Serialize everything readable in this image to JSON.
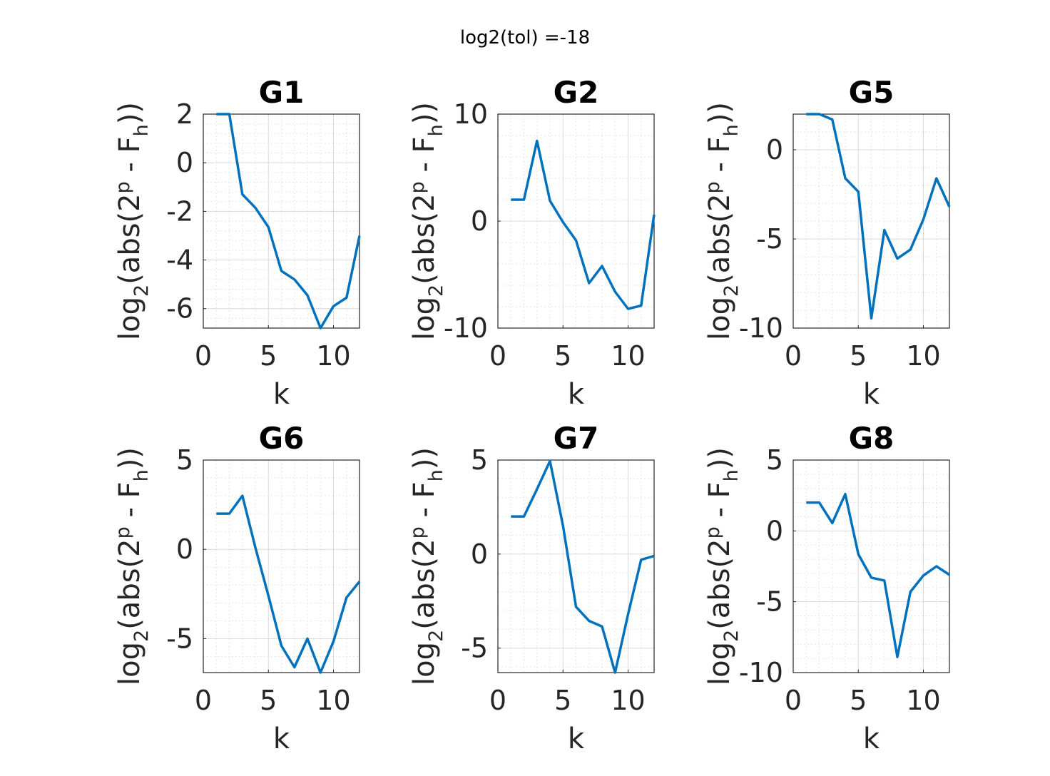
{
  "figure": {
    "suptitle": "log2(tol) =-18",
    "line_color": "#0072BD"
  },
  "chart_data": [
    {
      "type": "line",
      "title": "G1",
      "xlabel": "k",
      "ylabel": "log2(abs(2^p - F_h))",
      "xlim": [
        0,
        12
      ],
      "ylim": [
        -6.8,
        2
      ],
      "xticks": [
        0,
        5,
        10
      ],
      "yticks": [
        -6,
        -4,
        -2,
        0,
        2
      ],
      "grid": true,
      "x": [
        1,
        2,
        3,
        4,
        5,
        6,
        7,
        8,
        9,
        10,
        11,
        12
      ],
      "y": [
        2,
        2,
        -1.3,
        -1.85,
        -2.65,
        -4.45,
        -4.8,
        -5.45,
        -6.8,
        -5.9,
        -5.55,
        -3.0
      ]
    },
    {
      "type": "line",
      "title": "G2",
      "xlabel": "k",
      "ylabel": "log2(abs(2^p - F_h))",
      "xlim": [
        0,
        12
      ],
      "ylim": [
        -10,
        10
      ],
      "xticks": [
        0,
        5,
        10
      ],
      "yticks": [
        -10,
        0,
        10
      ],
      "grid": true,
      "x": [
        1,
        2,
        3,
        4,
        5,
        6,
        7,
        8,
        9,
        10,
        11,
        12
      ],
      "y": [
        2,
        2,
        7.5,
        1.9,
        -0.1,
        -1.8,
        -5.8,
        -4.2,
        -6.6,
        -8.2,
        -7.9,
        0.6
      ]
    },
    {
      "type": "line",
      "title": "G5",
      "xlabel": "k",
      "ylabel": "log2(abs(2^p - F_h))",
      "xlim": [
        0,
        12
      ],
      "ylim": [
        -10,
        2
      ],
      "xticks": [
        0,
        5,
        10
      ],
      "yticks": [
        -10,
        -5,
        0
      ],
      "grid": true,
      "x": [
        1,
        2,
        3,
        4,
        5,
        6,
        7,
        8,
        9,
        10,
        11,
        12
      ],
      "y": [
        2,
        2,
        1.7,
        -1.6,
        -2.35,
        -9.45,
        -4.5,
        -6.1,
        -5.6,
        -3.9,
        -1.6,
        -3.2
      ]
    },
    {
      "type": "line",
      "title": "G6",
      "xlabel": "k",
      "ylabel": "log2(abs(2^p - F_h))",
      "xlim": [
        0,
        12
      ],
      "ylim": [
        -6.9,
        5
      ],
      "xticks": [
        0,
        5,
        10
      ],
      "yticks": [
        -5,
        0,
        5
      ],
      "grid": true,
      "x": [
        1,
        2,
        3,
        4,
        5,
        6,
        7,
        8,
        9,
        10,
        11,
        12
      ],
      "y": [
        2,
        2,
        3,
        0.1,
        -2.6,
        -5.4,
        -6.6,
        -5.0,
        -6.9,
        -5.15,
        -2.7,
        -1.8
      ]
    },
    {
      "type": "line",
      "title": "G7",
      "xlabel": "k",
      "ylabel": "log2(abs(2^p - F_h))",
      "xlim": [
        0,
        12
      ],
      "ylim": [
        -6.3,
        5
      ],
      "xticks": [
        0,
        5,
        10
      ],
      "yticks": [
        -5,
        0,
        5
      ],
      "grid": true,
      "x": [
        1,
        2,
        3,
        4,
        5,
        6,
        7,
        8,
        9,
        10,
        11,
        12
      ],
      "y": [
        2,
        2,
        3.45,
        4.95,
        1.5,
        -2.8,
        -3.55,
        -3.85,
        -6.3,
        -3.2,
        -0.3,
        -0.1
      ]
    },
    {
      "type": "line",
      "title": "G8",
      "xlabel": "k",
      "ylabel": "log2(abs(2^p - F_h))",
      "xlim": [
        0,
        12
      ],
      "ylim": [
        -10,
        5
      ],
      "xticks": [
        0,
        5,
        10
      ],
      "yticks": [
        -10,
        -5,
        0,
        5
      ],
      "grid": true,
      "x": [
        1,
        2,
        3,
        4,
        5,
        6,
        7,
        8,
        9,
        10,
        11,
        12
      ],
      "y": [
        2,
        2,
        0.55,
        2.6,
        -1.65,
        -3.3,
        -3.5,
        -8.9,
        -4.3,
        -3.15,
        -2.5,
        -3.1
      ]
    }
  ]
}
